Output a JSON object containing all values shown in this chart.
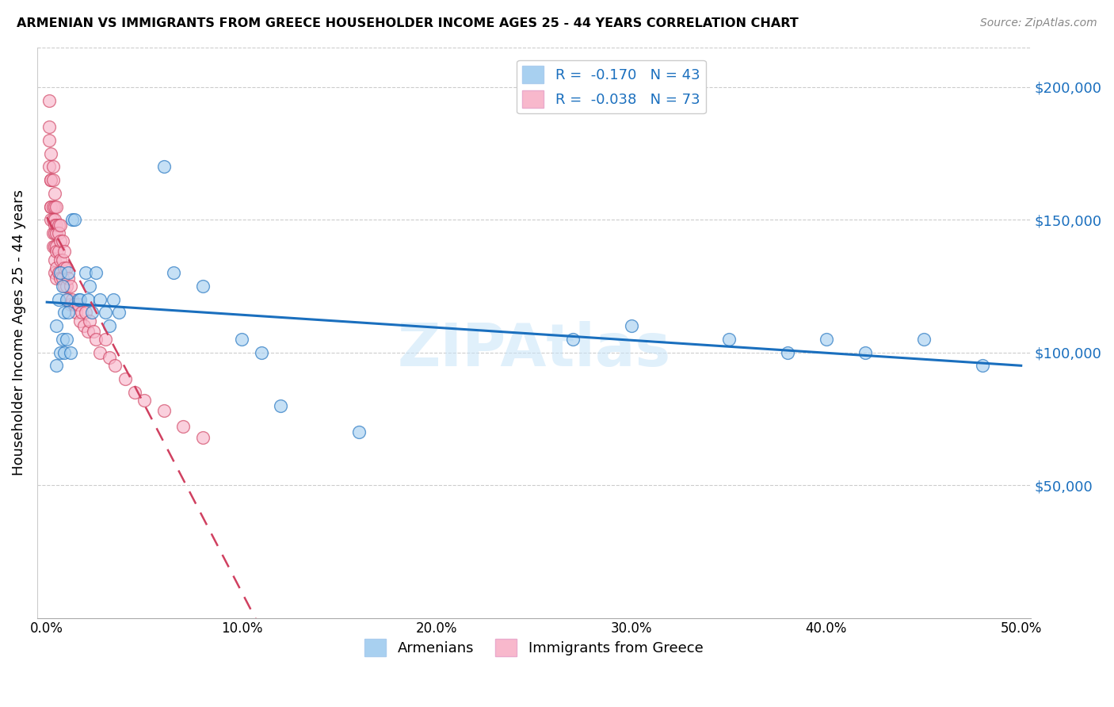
{
  "title": "ARMENIAN VS IMMIGRANTS FROM GREECE HOUSEHOLDER INCOME AGES 25 - 44 YEARS CORRELATION CHART",
  "source": "Source: ZipAtlas.com",
  "ylabel": "Householder Income Ages 25 - 44 years",
  "ylim": [
    0,
    215000
  ],
  "xlim": [
    -0.005,
    0.505
  ],
  "legend_blue_r": "-0.170",
  "legend_blue_n": "43",
  "legend_pink_r": "-0.038",
  "legend_pink_n": "73",
  "blue_color": "#a8d0f0",
  "pink_color": "#f8b8cc",
  "trendline_blue": "#1a6fbe",
  "trendline_pink": "#d04060",
  "armenians_x": [
    0.005,
    0.005,
    0.006,
    0.007,
    0.007,
    0.008,
    0.008,
    0.009,
    0.009,
    0.01,
    0.01,
    0.011,
    0.011,
    0.012,
    0.013,
    0.014,
    0.016,
    0.017,
    0.02,
    0.021,
    0.022,
    0.023,
    0.025,
    0.027,
    0.03,
    0.032,
    0.034,
    0.037,
    0.06,
    0.065,
    0.08,
    0.1,
    0.11,
    0.12,
    0.16,
    0.27,
    0.3,
    0.35,
    0.38,
    0.4,
    0.42,
    0.45,
    0.48
  ],
  "armenians_y": [
    110000,
    95000,
    120000,
    130000,
    100000,
    125000,
    105000,
    115000,
    100000,
    120000,
    105000,
    115000,
    130000,
    100000,
    150000,
    150000,
    120000,
    120000,
    130000,
    120000,
    125000,
    115000,
    130000,
    120000,
    115000,
    110000,
    120000,
    115000,
    170000,
    130000,
    125000,
    105000,
    100000,
    80000,
    70000,
    105000,
    110000,
    105000,
    100000,
    105000,
    100000,
    105000,
    95000
  ],
  "greece_x": [
    0.001,
    0.001,
    0.001,
    0.001,
    0.002,
    0.002,
    0.002,
    0.002,
    0.002,
    0.002,
    0.003,
    0.003,
    0.003,
    0.003,
    0.003,
    0.003,
    0.004,
    0.004,
    0.004,
    0.004,
    0.004,
    0.004,
    0.004,
    0.004,
    0.005,
    0.005,
    0.005,
    0.005,
    0.005,
    0.005,
    0.005,
    0.006,
    0.006,
    0.006,
    0.006,
    0.007,
    0.007,
    0.007,
    0.007,
    0.008,
    0.008,
    0.008,
    0.009,
    0.009,
    0.009,
    0.01,
    0.01,
    0.011,
    0.011,
    0.012,
    0.012,
    0.013,
    0.014,
    0.015,
    0.016,
    0.017,
    0.018,
    0.019,
    0.02,
    0.021,
    0.022,
    0.024,
    0.025,
    0.027,
    0.03,
    0.032,
    0.035,
    0.04,
    0.045,
    0.05,
    0.06,
    0.07,
    0.08
  ],
  "greece_y": [
    195000,
    185000,
    180000,
    170000,
    175000,
    165000,
    165000,
    155000,
    155000,
    150000,
    170000,
    165000,
    155000,
    150000,
    145000,
    140000,
    160000,
    155000,
    150000,
    148000,
    145000,
    140000,
    135000,
    130000,
    155000,
    148000,
    145000,
    140000,
    138000,
    132000,
    128000,
    148000,
    145000,
    138000,
    130000,
    148000,
    142000,
    135000,
    128000,
    142000,
    135000,
    128000,
    138000,
    132000,
    125000,
    132000,
    125000,
    128000,
    120000,
    125000,
    118000,
    120000,
    118000,
    115000,
    118000,
    112000,
    115000,
    110000,
    115000,
    108000,
    112000,
    108000,
    105000,
    100000,
    105000,
    98000,
    95000,
    90000,
    85000,
    82000,
    78000,
    72000,
    68000
  ]
}
